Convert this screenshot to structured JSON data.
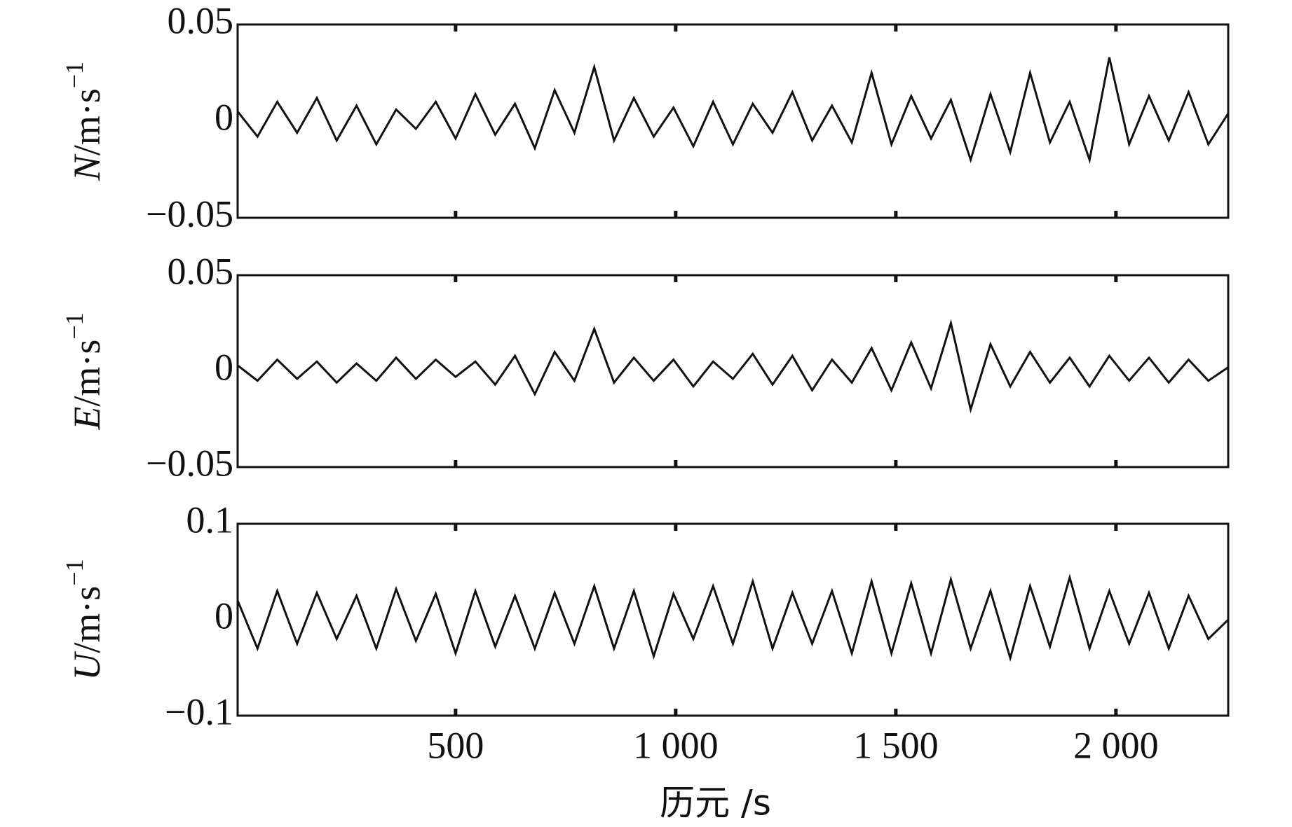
{
  "chart_data": [
    {
      "type": "line",
      "ylabel": {
        "var": "N",
        "unit": "/m·s",
        "exp": "−1"
      },
      "color": "#111111",
      "xlim": [
        5,
        2255
      ],
      "xticks": [
        500,
        1000,
        1500,
        2000
      ],
      "ylim": [
        -0.05,
        0.05
      ],
      "yticks": [
        {
          "value": -0.05,
          "label": "−0.05"
        },
        0,
        0.05
      ],
      "x": [
        5,
        50,
        95,
        140,
        185,
        230,
        275,
        320,
        365,
        410,
        455,
        500,
        545,
        590,
        635,
        680,
        725,
        770,
        815,
        860,
        905,
        950,
        995,
        1040,
        1085,
        1130,
        1175,
        1220,
        1265,
        1310,
        1355,
        1400,
        1445,
        1490,
        1535,
        1580,
        1625,
        1670,
        1715,
        1760,
        1805,
        1850,
        1895,
        1940,
        1985,
        2030,
        2075,
        2120,
        2165,
        2210,
        2255
      ],
      "values": [
        0.005,
        -0.008,
        0.01,
        -0.006,
        0.012,
        -0.01,
        0.008,
        -0.012,
        0.006,
        -0.004,
        0.01,
        -0.009,
        0.014,
        -0.007,
        0.009,
        -0.014,
        0.016,
        -0.006,
        0.028,
        -0.01,
        0.012,
        -0.008,
        0.007,
        -0.013,
        0.01,
        -0.012,
        0.009,
        -0.006,
        0.015,
        -0.01,
        0.008,
        -0.011,
        0.025,
        -0.012,
        0.013,
        -0.009,
        0.011,
        -0.02,
        0.014,
        -0.016,
        0.025,
        -0.011,
        0.01,
        -0.02,
        0.033,
        -0.012,
        0.013,
        -0.01,
        0.015,
        -0.012,
        0.004
      ]
    },
    {
      "type": "line",
      "ylabel": {
        "var": "E",
        "unit": "/m·s",
        "exp": "−1"
      },
      "color": "#111111",
      "xlim": [
        5,
        2255
      ],
      "xticks": [
        500,
        1000,
        1500,
        2000
      ],
      "ylim": [
        -0.05,
        0.05
      ],
      "yticks": [
        {
          "value": -0.05,
          "label": "−0.05"
        },
        0,
        0.05
      ],
      "x": [
        5,
        50,
        95,
        140,
        185,
        230,
        275,
        320,
        365,
        410,
        455,
        500,
        545,
        590,
        635,
        680,
        725,
        770,
        815,
        860,
        905,
        950,
        995,
        1040,
        1085,
        1130,
        1175,
        1220,
        1265,
        1310,
        1355,
        1400,
        1445,
        1490,
        1535,
        1580,
        1625,
        1670,
        1715,
        1760,
        1805,
        1850,
        1895,
        1940,
        1985,
        2030,
        2075,
        2120,
        2165,
        2210,
        2255
      ],
      "values": [
        0.003,
        -0.005,
        0.006,
        -0.004,
        0.005,
        -0.006,
        0.004,
        -0.005,
        0.007,
        -0.004,
        0.006,
        -0.003,
        0.005,
        -0.007,
        0.008,
        -0.012,
        0.01,
        -0.005,
        0.022,
        -0.006,
        0.007,
        -0.005,
        0.006,
        -0.008,
        0.005,
        -0.004,
        0.009,
        -0.007,
        0.008,
        -0.01,
        0.006,
        -0.006,
        0.012,
        -0.01,
        0.015,
        -0.009,
        0.025,
        -0.02,
        0.014,
        -0.008,
        0.01,
        -0.006,
        0.007,
        -0.008,
        0.008,
        -0.005,
        0.007,
        -0.006,
        0.006,
        -0.005,
        0.002
      ]
    },
    {
      "type": "line",
      "ylabel": {
        "var": "U",
        "unit": "/m·s",
        "exp": "−1"
      },
      "color": "#111111",
      "xlabel": "历元 /s",
      "xlim": [
        5,
        2255
      ],
      "xticks": [
        500,
        {
          "value": 1000,
          "label": "1 000"
        },
        {
          "value": 1500,
          "label": "1 500"
        },
        {
          "value": 2000,
          "label": "2 000"
        }
      ],
      "ylim": [
        -0.1,
        0.1
      ],
      "yticks": [
        {
          "value": -0.1,
          "label": "−0.1"
        },
        0,
        0.1
      ],
      "x": [
        5,
        50,
        95,
        140,
        185,
        230,
        275,
        320,
        365,
        410,
        455,
        500,
        545,
        590,
        635,
        680,
        725,
        770,
        815,
        860,
        905,
        950,
        995,
        1040,
        1085,
        1130,
        1175,
        1220,
        1265,
        1310,
        1355,
        1400,
        1445,
        1490,
        1535,
        1580,
        1625,
        1670,
        1715,
        1760,
        1805,
        1850,
        1895,
        1940,
        1985,
        2030,
        2075,
        2120,
        2165,
        2210,
        2255
      ],
      "values": [
        0.02,
        -0.03,
        0.03,
        -0.025,
        0.028,
        -0.02,
        0.025,
        -0.03,
        0.032,
        -0.022,
        0.027,
        -0.035,
        0.03,
        -0.028,
        0.025,
        -0.03,
        0.028,
        -0.025,
        0.035,
        -0.03,
        0.03,
        -0.038,
        0.027,
        -0.02,
        0.035,
        -0.025,
        0.04,
        -0.03,
        0.028,
        -0.025,
        0.03,
        -0.035,
        0.04,
        -0.035,
        0.038,
        -0.035,
        0.042,
        -0.03,
        0.03,
        -0.04,
        0.035,
        -0.028,
        0.044,
        -0.03,
        0.03,
        -0.025,
        0.028,
        -0.03,
        0.025,
        -0.02,
        0
      ]
    }
  ]
}
